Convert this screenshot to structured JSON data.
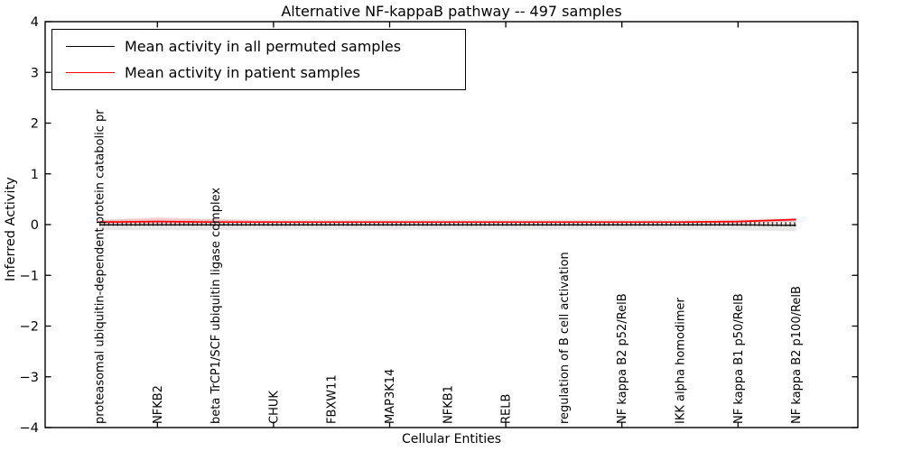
{
  "figure": {
    "title": "Alternative NF-kappaB pathway -- 497 samples",
    "xlabel": "Cellular Entities",
    "ylabel": "Inferred Activity"
  },
  "legend": {
    "position": "upper left",
    "items": [
      {
        "label": "Mean activity in all permuted samples",
        "color": "#000000"
      },
      {
        "label": "Mean activity in patient samples",
        "color": "#ff0000"
      }
    ]
  },
  "chart_data": {
    "type": "line",
    "title": "Alternative NF-kappaB pathway -- 497 samples",
    "xlabel": "Cellular Entities",
    "ylabel": "Inferred Activity",
    "ylim": [
      -4,
      4
    ],
    "ytick_labels": [
      "4",
      "3",
      "2",
      "1",
      "0",
      "−1",
      "−2",
      "−3",
      "−4"
    ],
    "ytick_values": [
      4,
      3,
      2,
      1,
      0,
      -1,
      -2,
      -3,
      -4
    ],
    "grid": false,
    "legend_position": "upper left",
    "categories": [
      "proteasomal ubiquitin-dependent protein catabolic pr",
      "NFKB2",
      "beta TrCP1/SCF ubiquitin ligase complex",
      "CHUK",
      "FBXW11",
      "MAP3K14",
      "NFKB1",
      "RELB",
      "regulation of B cell activation",
      "NF kappa B2 p52/RelB",
      "IKK alpha homodimer",
      "NF kappa B1 p50/RelB",
      "NF kappa B2 p100/RelB"
    ],
    "series": [
      {
        "name": "Mean activity in all permuted samples",
        "color": "#000000",
        "style": "solid-with-dense-tick-markers",
        "values": [
          -0.005,
          -0.005,
          -0.005,
          -0.005,
          -0.005,
          -0.005,
          -0.005,
          -0.005,
          -0.005,
          -0.005,
          -0.005,
          -0.005,
          -0.015
        ]
      },
      {
        "name": "Mean activity in patient samples",
        "color": "#ff0000",
        "style": "solid",
        "values": [
          0.05,
          0.06,
          0.05,
          0.05,
          0.05,
          0.05,
          0.05,
          0.05,
          0.05,
          0.05,
          0.05,
          0.06,
          0.1
        ]
      }
    ],
    "bands": [
      {
        "name": "permuted-samples-std-band",
        "color": "#e7e7e7",
        "opacity": 1,
        "upper": [
          0.11,
          0.11,
          0.11,
          0.1,
          0.1,
          0.1,
          0.1,
          0.1,
          0.1,
          0.1,
          0.1,
          0.11,
          0.12
        ],
        "lower": [
          -0.11,
          -0.11,
          -0.11,
          -0.1,
          -0.1,
          -0.1,
          -0.1,
          -0.1,
          -0.1,
          -0.1,
          -0.1,
          -0.11,
          -0.13
        ]
      },
      {
        "name": "patient-samples-std-band",
        "color": "#ff0000",
        "opacity": 0.14,
        "upper": [
          0.08,
          0.15,
          0.1,
          0.07,
          0.06,
          0.06,
          0.06,
          0.06,
          0.06,
          0.06,
          0.06,
          0.08,
          0.12
        ],
        "lower": [
          0.02,
          0.02,
          0.03,
          0.04,
          0.04,
          0.04,
          0.04,
          0.04,
          0.04,
          0.04,
          0.04,
          0.03,
          0.06
        ]
      }
    ]
  }
}
